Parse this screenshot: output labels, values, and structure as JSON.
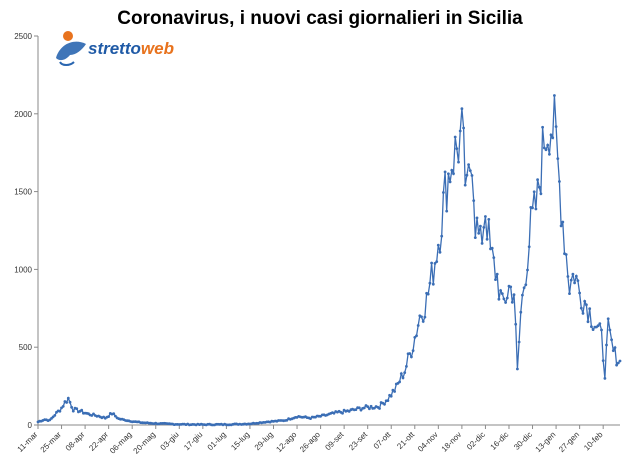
{
  "chart_data": {
    "type": "line",
    "title": "Coronavirus, i nuovi casi giornalieri in Sicilia",
    "xlabel": "",
    "ylabel": "",
    "ylim": [
      0,
      2500
    ],
    "yticks": [
      0,
      500,
      1000,
      1500,
      2000,
      2500
    ],
    "grid": false,
    "legend": "none",
    "x_start": "2020-03-11",
    "x_end": "2021-02-20",
    "x_tick_labels": [
      "11-mar",
      "25-mar",
      "08-apr",
      "22-apr",
      "06-mag",
      "20-mag",
      "03-giu",
      "17-giu",
      "01-lug",
      "15-lug",
      "29-lug",
      "12-ago",
      "26-ago",
      "09-set",
      "23-set",
      "07-ott",
      "21-ott",
      "04-nov",
      "18-nov",
      "02-dic",
      "16-dic",
      "30-dic",
      "13-gen",
      "27-gen",
      "10-feb"
    ],
    "series_color": "#3b6eb5",
    "keypoints": [
      [
        "2020-03-11",
        20
      ],
      [
        "2020-03-15",
        35
      ],
      [
        "2020-03-18",
        30
      ],
      [
        "2020-03-21",
        65
      ],
      [
        "2020-03-25",
        110
      ],
      [
        "2020-03-27",
        145
      ],
      [
        "2020-03-29",
        170
      ],
      [
        "2020-04-01",
        100
      ],
      [
        "2020-04-05",
        90
      ],
      [
        "2020-04-10",
        70
      ],
      [
        "2020-04-15",
        60
      ],
      [
        "2020-04-20",
        45
      ],
      [
        "2020-04-24",
        75
      ],
      [
        "2020-04-28",
        40
      ],
      [
        "2020-05-05",
        25
      ],
      [
        "2020-05-12",
        15
      ],
      [
        "2020-05-20",
        10
      ],
      [
        "2020-06-01",
        5
      ],
      [
        "2020-06-15",
        3
      ],
      [
        "2020-07-01",
        3
      ],
      [
        "2020-07-15",
        8
      ],
      [
        "2020-07-25",
        20
      ],
      [
        "2020-08-05",
        30
      ],
      [
        "2020-08-12",
        55
      ],
      [
        "2020-08-20",
        45
      ],
      [
        "2020-08-28",
        60
      ],
      [
        "2020-09-05",
        80
      ],
      [
        "2020-09-12",
        90
      ],
      [
        "2020-09-20",
        110
      ],
      [
        "2020-09-30",
        120
      ],
      [
        "2020-10-05",
        170
      ],
      [
        "2020-10-10",
        240
      ],
      [
        "2020-10-15",
        350
      ],
      [
        "2020-10-20",
        520
      ],
      [
        "2020-10-24",
        700
      ],
      [
        "2020-10-28",
        800
      ],
      [
        "2020-11-01",
        1000
      ],
      [
        "2020-11-05",
        1250
      ],
      [
        "2020-11-08",
        1500
      ],
      [
        "2020-11-12",
        1700
      ],
      [
        "2020-11-15",
        1780
      ],
      [
        "2020-11-18",
        1860
      ],
      [
        "2020-11-21",
        1450
      ],
      [
        "2020-11-24",
        1780
      ],
      [
        "2020-11-26",
        1320
      ],
      [
        "2020-11-29",
        1150
      ],
      [
        "2020-12-02",
        1400
      ],
      [
        "2020-12-05",
        1100
      ],
      [
        "2020-12-09",
        950
      ],
      [
        "2020-12-12",
        760
      ],
      [
        "2020-12-16",
        880
      ],
      [
        "2020-12-19",
        860
      ],
      [
        "2020-12-21",
        340
      ],
      [
        "2020-12-23",
        720
      ],
      [
        "2020-12-26",
        1000
      ],
      [
        "2020-12-29",
        1270
      ],
      [
        "2021-01-02",
        1450
      ],
      [
        "2021-01-06",
        1850
      ],
      [
        "2021-01-09",
        1950
      ],
      [
        "2021-01-12",
        1900
      ],
      [
        "2021-01-15",
        1550
      ],
      [
        "2021-01-18",
        1200
      ],
      [
        "2021-01-21",
        900
      ],
      [
        "2021-01-24",
        980
      ],
      [
        "2021-01-27",
        850
      ],
      [
        "2021-01-31",
        780
      ],
      [
        "2021-02-03",
        700
      ],
      [
        "2021-02-06",
        640
      ],
      [
        "2021-02-09",
        560
      ],
      [
        "2021-02-11",
        340
      ],
      [
        "2021-02-13",
        610
      ],
      [
        "2021-02-16",
        470
      ],
      [
        "2021-02-20",
        400
      ]
    ]
  },
  "logo": {
    "part1": "stretto",
    "part2": "web",
    "color1": "#1f5aa6",
    "color2": "#e8731e"
  }
}
